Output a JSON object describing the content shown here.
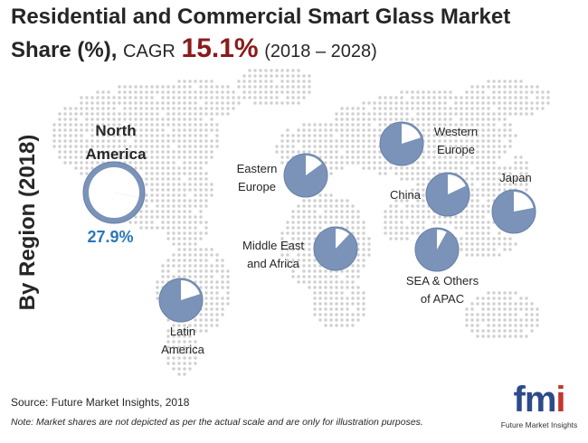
{
  "title": {
    "line1": "Residential and Commercial Smart Glass Market",
    "line2_main": "Share (%),",
    "cagr_label": "CAGR",
    "cagr_value": "15.1%",
    "period": "(2018 – 2028)"
  },
  "y_axis_label": "By Region (2018)",
  "colors": {
    "pie_fill": "#7b93b8",
    "pie_edge": "#6880a6",
    "map_dots": "#cfcfcf",
    "highlight": "#2878b8",
    "cagr": "#8b1a1a"
  },
  "chart_data": {
    "type": "pie",
    "title": "Residential and Commercial Smart Glass Market Share (%), CAGR 15.1% (2018 – 2028)",
    "subtitle": "By Region (2018)",
    "cagr": 15.1,
    "note_scale": "Market shares are not depicted as per the actual scale and are only for illustration purposes.",
    "regions": [
      {
        "id": "north-america",
        "name": "North America",
        "share": 27.9,
        "share_label": "27.9%"
      },
      {
        "id": "latin-america",
        "name": "Latin America",
        "share": 20
      },
      {
        "id": "eastern-europe",
        "name": "Eastern Europe",
        "share": 15
      },
      {
        "id": "western-europe",
        "name": "Western Europe",
        "share": 20
      },
      {
        "id": "middle-east-africa",
        "name": "Middle East and Africa",
        "share": 12
      },
      {
        "id": "china",
        "name": "China",
        "share": 18
      },
      {
        "id": "japan",
        "name": "Japan",
        "share": 22
      },
      {
        "id": "sea-others-apac",
        "name": "SEA & Others of APAC",
        "share": 8
      }
    ]
  },
  "labels": {
    "north_america": "North America",
    "north_america_l1": "North",
    "north_america_l2": "America",
    "north_america_value": "27.9%",
    "latin_america_l1": "Latin",
    "latin_america_l2": "America",
    "eastern_europe_l1": "Eastern",
    "eastern_europe_l2": "Europe",
    "western_europe_l1": "Western",
    "western_europe_l2": "Europe",
    "mea_l1": "Middle East",
    "mea_l2": "and Africa",
    "china": "China",
    "japan": "Japan",
    "sea_l1": "SEA & Others",
    "sea_l2": "of APAC"
  },
  "footer": {
    "source": "Source: Future Market Insights, 2018",
    "note": "Note: Market shares are not depicted as per the actual scale and are only for illustration purposes."
  },
  "logo": {
    "brand_f": "f",
    "brand_m": "m",
    "brand_i": "i",
    "sub": "Future Market Insights"
  }
}
